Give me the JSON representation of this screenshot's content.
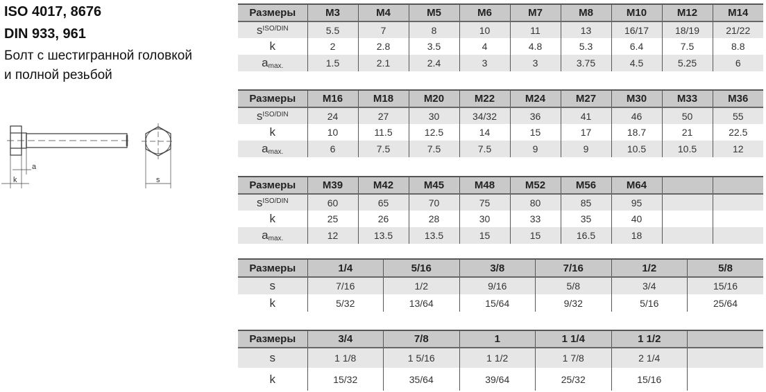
{
  "heading": {
    "line1": "ISO 4017, 8676",
    "line2": "DIN 933, 961",
    "desc1": "Болт с шестигранной головкой",
    "desc2": "и полной резьбой"
  },
  "diagram": {
    "label_a": "a",
    "label_k": "k",
    "label_s": "s"
  },
  "tables": [
    {
      "header": [
        "Размеры",
        "M3",
        "M4",
        "M5",
        "M6",
        "M7",
        "M8",
        "M10",
        "M12",
        "M14"
      ],
      "rows": [
        {
          "label": "s",
          "sub": "ISO/DIN",
          "values": [
            "5.5",
            "7",
            "8",
            "10",
            "11",
            "13",
            "16/17",
            "18/19",
            "21/22"
          ]
        },
        {
          "label": "k",
          "sub": "",
          "values": [
            "2",
            "2.8",
            "3.5",
            "4",
            "4.8",
            "5.3",
            "6.4",
            "7.5",
            "8.8"
          ]
        },
        {
          "label": "a",
          "sub": "max.",
          "values": [
            "1.5",
            "2.1",
            "2.4",
            "3",
            "3",
            "3.75",
            "4.5",
            "5.25",
            "6"
          ]
        }
      ]
    },
    {
      "header": [
        "Размеры",
        "M16",
        "M18",
        "M20",
        "M22",
        "M24",
        "M27",
        "M30",
        "M33",
        "M36"
      ],
      "rows": [
        {
          "label": "s",
          "sub": "ISO/DIN",
          "values": [
            "24",
            "27",
            "30",
            "34/32",
            "36",
            "41",
            "46",
            "50",
            "55"
          ]
        },
        {
          "label": "k",
          "sub": "",
          "values": [
            "10",
            "11.5",
            "12.5",
            "14",
            "15",
            "17",
            "18.7",
            "21",
            "22.5"
          ]
        },
        {
          "label": "a",
          "sub": "max.",
          "values": [
            "6",
            "7.5",
            "7.5",
            "7.5",
            "9",
            "9",
            "10.5",
            "10.5",
            "12"
          ]
        }
      ]
    },
    {
      "header": [
        "Размеры",
        "M39",
        "M42",
        "M45",
        "M48",
        "M52",
        "M56",
        "M64",
        "",
        ""
      ],
      "rows": [
        {
          "label": "s",
          "sub": "ISO/DIN",
          "values": [
            "60",
            "65",
            "70",
            "75",
            "80",
            "85",
            "95",
            "",
            ""
          ]
        },
        {
          "label": "k",
          "sub": "",
          "values": [
            "25",
            "26",
            "28",
            "30",
            "33",
            "35",
            "40",
            "",
            ""
          ]
        },
        {
          "label": "a",
          "sub": "max.",
          "values": [
            "12",
            "13.5",
            "13.5",
            "15",
            "15",
            "16.5",
            "18",
            "",
            ""
          ]
        }
      ]
    },
    {
      "header": [
        "Размеры",
        "1/4",
        "5/16",
        "3/8",
        "7/16",
        "1/2",
        "5/8"
      ],
      "rows": [
        {
          "label": "s",
          "sub": "",
          "values": [
            "7/16",
            "1/2",
            "9/16",
            "5/8",
            "3/4",
            "15/16"
          ]
        },
        {
          "label": "k",
          "sub": "",
          "values": [
            "5/32",
            "13/64",
            "15/64",
            "9/32",
            "5/16",
            "25/64"
          ]
        }
      ]
    },
    {
      "header": [
        "Размеры",
        "3/4",
        "7/8",
        "1",
        "1 1/4",
        "1 1/2",
        ""
      ],
      "rows": [
        {
          "label": "s",
          "sub": "",
          "values": [
            "1 1/8",
            "1 5/16",
            "1 1/2",
            "1 7/8",
            "2 1/4",
            ""
          ]
        },
        {
          "label": "k",
          "sub": "",
          "values": [
            "15/32",
            "35/64",
            "39/64",
            "25/32",
            "15/16",
            ""
          ]
        }
      ]
    }
  ]
}
